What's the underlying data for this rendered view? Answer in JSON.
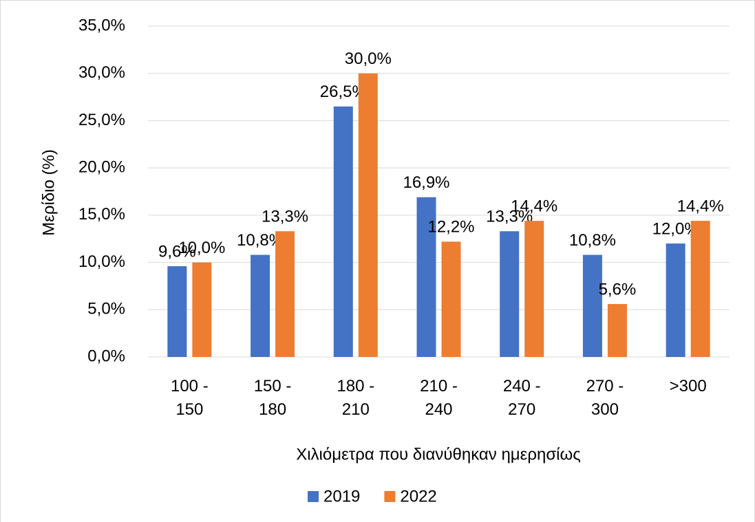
{
  "chart_data": {
    "type": "bar",
    "categories": [
      "100 - 150",
      "150 - 180",
      "180 - 210",
      "210 - 240",
      "240 - 270",
      "270 - 300",
      ">300"
    ],
    "series": [
      {
        "name": "2019",
        "color": "#4472c4",
        "values": [
          9.6,
          10.8,
          26.5,
          16.9,
          13.3,
          10.8,
          12.0
        ],
        "value_labels": [
          "9,6%",
          "10,8%",
          "26,5%",
          "16,9%",
          "13,3%",
          "10,8%",
          "12,0%"
        ]
      },
      {
        "name": "2022",
        "color": "#ed7d31",
        "values": [
          10.0,
          13.3,
          30.0,
          12.2,
          14.4,
          5.6,
          14.4
        ],
        "value_labels": [
          "10,0%",
          "13,3%",
          "30,0%",
          "12,2%",
          "14,4%",
          "5,6%",
          "14,4%"
        ]
      }
    ],
    "ylabel": "Μερίδιο (%)",
    "xlabel": "Χιλιόμετρα που διανύθηκαν ημερησίως",
    "ylim": [
      0,
      35
    ],
    "yticks": [
      {
        "value": 0,
        "label": "0,0%"
      },
      {
        "value": 5,
        "label": "5,0%"
      },
      {
        "value": 10,
        "label": "10,0%"
      },
      {
        "value": 15,
        "label": "15,0%"
      },
      {
        "value": 20,
        "label": "20,0%"
      },
      {
        "value": 25,
        "label": "25,0%"
      },
      {
        "value": 30,
        "label": "30,0%"
      },
      {
        "value": 35,
        "label": "35,0%"
      }
    ],
    "grid": true,
    "legend": "bottom"
  }
}
